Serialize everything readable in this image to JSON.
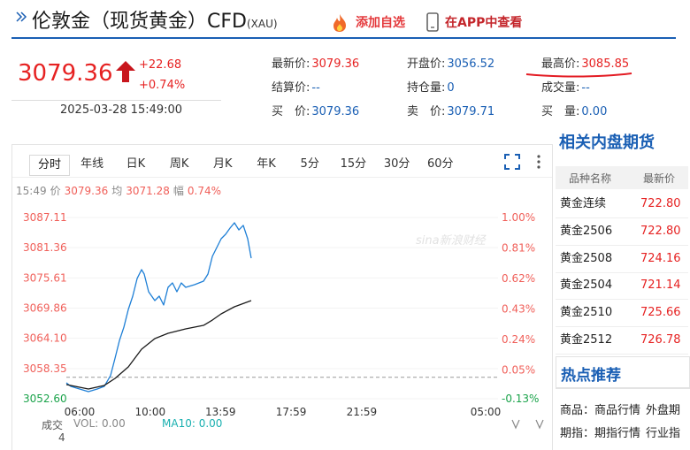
{
  "header": {
    "title": "伦敦金（现货黄金）CFD",
    "symbol": "(XAU)",
    "add_watchlist": "添加自选",
    "view_in_app": "在APP中查看"
  },
  "quote": {
    "price": "3079.36",
    "change": "+22.68",
    "change_pct": "+0.74%",
    "time": "2025-03-28 15:49:00"
  },
  "fields": [
    [
      {
        "label": "最新价:",
        "value": "3079.36"
      },
      {
        "label": "开盘价:",
        "value": "3056.52"
      },
      {
        "label": "最高价:",
        "value": "3085.85"
      }
    ],
    [
      {
        "label": "结算价:",
        "value": "--"
      },
      {
        "label": "持仓量:",
        "value": "0"
      },
      {
        "label": "成交量:",
        "value": "--"
      }
    ],
    [
      {
        "label": "买　价:",
        "value": "3079.36"
      },
      {
        "label": "卖　价:",
        "value": "3079.71"
      },
      {
        "label": "买　量:",
        "value": "0.00"
      }
    ]
  ],
  "chart_tabs": [
    "分时",
    "年线",
    "日K",
    "周K",
    "月K",
    "年K",
    "5分",
    "15分",
    "30分",
    "60分"
  ],
  "chart_info": [
    "15:49",
    "价",
    "3079.36",
    "均",
    "3071.28",
    "幅",
    "0.74%"
  ],
  "chart_data": {
    "type": "line",
    "watermark": "sina新浪财经",
    "series": [
      {
        "color": "#1e7fd6",
        "x": [
          5.25,
          5.5,
          6.0,
          6.5,
          7.0,
          7.4,
          7.75,
          8.01,
          8.26,
          8.51,
          8.76,
          9.01,
          9.26,
          9.51,
          9.66,
          9.91,
          10.26,
          10.51,
          10.76,
          11.01,
          11.26,
          11.51,
          11.76,
          12.01,
          12.51,
          13.02,
          13.27,
          13.52,
          13.77,
          14.02,
          14.27,
          14.52,
          14.77,
          15.02,
          15.27,
          15.52,
          15.72
        ],
        "values": [
          3055.63,
          3054.96,
          3054.45,
          3053.95,
          3054.45,
          3054.96,
          3056.98,
          3060.34,
          3063.71,
          3066.24,
          3069.6,
          3072.13,
          3075.5,
          3077.18,
          3076.34,
          3072.97,
          3071.29,
          3072.13,
          3070.45,
          3073.81,
          3074.65,
          3072.97,
          3074.65,
          3073.81,
          3074.32,
          3074.99,
          3076.34,
          3079.7,
          3081.39,
          3083.07,
          3083.91,
          3085.09,
          3086.1,
          3084.75,
          3085.6,
          3083.07,
          3079.36
        ]
      },
      {
        "color": "#1a1a1a",
        "x": [
          5.25,
          6.5,
          7.4,
          8.01,
          8.76,
          9.51,
          10.26,
          11.01,
          12.01,
          13.02,
          13.52,
          14.02,
          14.77,
          15.72
        ],
        "values": [
          3055.29,
          3054.45,
          3055.13,
          3056.47,
          3058.66,
          3062.03,
          3064.05,
          3065.06,
          3065.9,
          3066.57,
          3067.58,
          3068.76,
          3070.11,
          3071.28
        ]
      }
    ],
    "reference_line": 3056.68,
    "xlim": [
      5.25,
      29.8
    ],
    "xticks": [
      {
        "value": 6,
        "label": "06:00"
      },
      {
        "value": 10,
        "label": "10:00"
      },
      {
        "value": 13.98,
        "label": "13:59"
      },
      {
        "value": 17.98,
        "label": "17:59"
      },
      {
        "value": 21.98,
        "label": "21:59"
      },
      {
        "value": 29,
        "label": "05:00"
      }
    ],
    "ylim": [
      3052.6,
      3087.11
    ],
    "yticks": [
      3087.11,
      3081.36,
      3075.61,
      3069.86,
      {
        "value": 3064.1,
        "label": "3064.10"
      },
      3058.35,
      {
        "value": 3052.6,
        "label": "3052.60"
      }
    ],
    "y2lim": [
      -0.13,
      1.0
    ],
    "y2ticks": [
      {
        "value": 1.0,
        "label": "1.00%"
      },
      {
        "value": 0.81,
        "label": "0.81%"
      },
      {
        "value": 0.62,
        "label": "0.62%"
      },
      {
        "value": 0.43,
        "label": "0.43%"
      },
      {
        "value": 0.24,
        "label": "0.24%"
      },
      {
        "value": 0.05,
        "label": "0.05%"
      },
      {
        "value": -0.13,
        "label": "-0.13%"
      }
    ],
    "grid": true,
    "up_color": "#f0605a",
    "down_color": "#1aa34a"
  },
  "volume": {
    "label": "成交",
    "value": "4",
    "vol": "VOL: 0.00",
    "ma10": "MA10: 0.00"
  },
  "sidebar": {
    "title": "相关内盘期货",
    "columns": [
      "品种名称",
      "最新价"
    ],
    "rows": [
      [
        "黄金连续",
        "722.80"
      ],
      [
        "黄金2506",
        "722.80"
      ],
      [
        "黄金2508",
        "724.16"
      ],
      [
        "黄金2504",
        "721.14"
      ],
      [
        "黄金2510",
        "725.66"
      ],
      [
        "黄金2512",
        "726.78"
      ]
    ],
    "hot_title": "热点推荐",
    "links": [
      [
        "商品：",
        "商品行情",
        "外盘期"
      ],
      [
        "期指：",
        "期指行情",
        "行业指"
      ]
    ]
  }
}
